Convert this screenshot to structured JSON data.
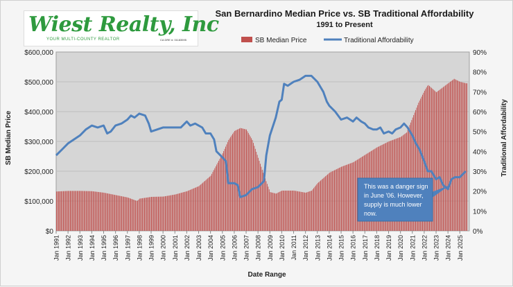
{
  "logo": {
    "name": "Wiest Realty, Inc",
    "tagline": "YOUR MULTI-COUNTY REALTOR",
    "license": "CA DRE #: 01183595"
  },
  "chart_data": {
    "type": "bar+line",
    "title": "San Bernardino Median Price vs. SB Traditional Affordability",
    "subtitle": "1991 to Present",
    "xlabel": "Date Range",
    "ylabel": "SB Median Price",
    "y2label": "Traditional Affordability",
    "legend_position": "top",
    "grid": true,
    "ylim": [
      0,
      600000
    ],
    "y2lim": [
      0,
      90
    ],
    "y_ticks": [
      "$0",
      "$100,000",
      "$200,000",
      "$300,000",
      "$400,000",
      "$500,000",
      "$600,000"
    ],
    "y2_ticks": [
      "0%",
      "10%",
      "20%",
      "30%",
      "40%",
      "50%",
      "60%",
      "70%",
      "80%",
      "90%"
    ],
    "x_ticks": [
      "Jan 1991",
      "Jan 1992",
      "Jan 1993",
      "Jan 1994",
      "Jan 1995",
      "Jan 1996",
      "Jan 1997",
      "Jan 1998",
      "Jan 1999",
      "Jan 2000",
      "Jan 2001",
      "Jan 2002",
      "Jan 2003",
      "Jan 2004",
      "Jan 2005",
      "Jan 2006",
      "Jan 2007",
      "Jan 2008",
      "Jan 2009",
      "Jan 2010",
      "Jan 2011",
      "Jan 2012",
      "Jan 2013",
      "Jan 2014",
      "Jan 2015",
      "Jan 2016",
      "Jan 2017",
      "Jan 2018",
      "Jan 2019",
      "Jan 2020",
      "Jan 2021",
      "Jan 2022",
      "Jan 2023",
      "Jan 2024",
      "Jan 2025"
    ],
    "series": [
      {
        "name": "SB Median Price",
        "type": "bar",
        "axis": "left",
        "color": "#c0504d",
        "points": [
          [
            1991.0,
            132000
          ],
          [
            1992.0,
            134000
          ],
          [
            1993.0,
            134000
          ],
          [
            1994.0,
            133000
          ],
          [
            1995.0,
            128000
          ],
          [
            1996.0,
            120000
          ],
          [
            1997.0,
            112000
          ],
          [
            1997.8,
            100000
          ],
          [
            1998.0,
            108000
          ],
          [
            1999.0,
            114000
          ],
          [
            2000.0,
            115000
          ],
          [
            2001.0,
            122000
          ],
          [
            2002.0,
            133000
          ],
          [
            2003.0,
            150000
          ],
          [
            2004.0,
            185000
          ],
          [
            2005.0,
            260000
          ],
          [
            2005.5,
            305000
          ],
          [
            2006.0,
            335000
          ],
          [
            2006.5,
            345000
          ],
          [
            2007.0,
            340000
          ],
          [
            2007.5,
            305000
          ],
          [
            2008.0,
            245000
          ],
          [
            2008.5,
            185000
          ],
          [
            2009.0,
            130000
          ],
          [
            2009.5,
            125000
          ],
          [
            2010.0,
            135000
          ],
          [
            2011.0,
            135000
          ],
          [
            2012.0,
            128000
          ],
          [
            2012.5,
            135000
          ],
          [
            2013.0,
            160000
          ],
          [
            2014.0,
            195000
          ],
          [
            2015.0,
            215000
          ],
          [
            2016.0,
            230000
          ],
          [
            2017.0,
            255000
          ],
          [
            2018.0,
            280000
          ],
          [
            2019.0,
            300000
          ],
          [
            2020.0,
            315000
          ],
          [
            2020.5,
            330000
          ],
          [
            2021.0,
            380000
          ],
          [
            2021.5,
            430000
          ],
          [
            2022.0,
            470000
          ],
          [
            2022.3,
            490000
          ],
          [
            2023.0,
            465000
          ],
          [
            2023.5,
            480000
          ],
          [
            2024.0,
            495000
          ],
          [
            2024.5,
            510000
          ],
          [
            2025.0,
            500000
          ],
          [
            2025.5,
            495000
          ]
        ]
      },
      {
        "name": "Traditional Affordability",
        "type": "line",
        "axis": "right",
        "color": "#4f81bd",
        "points": [
          [
            1991.0,
            38
          ],
          [
            1991.5,
            41
          ],
          [
            1992.0,
            44
          ],
          [
            1992.5,
            46
          ],
          [
            1993.0,
            48
          ],
          [
            1993.5,
            51
          ],
          [
            1994.0,
            53
          ],
          [
            1994.5,
            52
          ],
          [
            1995.0,
            53
          ],
          [
            1995.3,
            49
          ],
          [
            1995.6,
            50
          ],
          [
            1996.0,
            53
          ],
          [
            1996.5,
            54
          ],
          [
            1997.0,
            56
          ],
          [
            1997.3,
            58
          ],
          [
            1997.6,
            57
          ],
          [
            1998.0,
            59
          ],
          [
            1998.5,
            58
          ],
          [
            1998.8,
            54
          ],
          [
            1999.0,
            50
          ],
          [
            1999.5,
            51
          ],
          [
            2000.0,
            52
          ],
          [
            2000.5,
            52
          ],
          [
            2001.0,
            52
          ],
          [
            2001.5,
            52
          ],
          [
            2002.0,
            55
          ],
          [
            2002.3,
            53
          ],
          [
            2002.7,
            54
          ],
          [
            2003.0,
            53
          ],
          [
            2003.3,
            52
          ],
          [
            2003.6,
            49
          ],
          [
            2004.0,
            49
          ],
          [
            2004.3,
            46
          ],
          [
            2004.5,
            40
          ],
          [
            2005.0,
            37
          ],
          [
            2005.3,
            35
          ],
          [
            2005.5,
            24
          ],
          [
            2006.0,
            24
          ],
          [
            2006.3,
            23
          ],
          [
            2006.5,
            17
          ],
          [
            2007.0,
            18
          ],
          [
            2007.5,
            21
          ],
          [
            2008.0,
            22
          ],
          [
            2008.5,
            25
          ],
          [
            2008.7,
            38
          ],
          [
            2009.0,
            48
          ],
          [
            2009.5,
            57
          ],
          [
            2009.8,
            65
          ],
          [
            2010.0,
            66
          ],
          [
            2010.2,
            74
          ],
          [
            2010.5,
            73
          ],
          [
            2011.0,
            75
          ],
          [
            2011.5,
            76
          ],
          [
            2012.0,
            78
          ],
          [
            2012.5,
            78
          ],
          [
            2013.0,
            75
          ],
          [
            2013.5,
            70
          ],
          [
            2013.8,
            65
          ],
          [
            2014.0,
            63
          ],
          [
            2014.5,
            60
          ],
          [
            2015.0,
            56
          ],
          [
            2015.5,
            57
          ],
          [
            2016.0,
            55
          ],
          [
            2016.3,
            57
          ],
          [
            2016.7,
            55
          ],
          [
            2017.0,
            54
          ],
          [
            2017.3,
            52
          ],
          [
            2017.7,
            51
          ],
          [
            2018.0,
            51
          ],
          [
            2018.3,
            52
          ],
          [
            2018.6,
            49
          ],
          [
            2019.0,
            50
          ],
          [
            2019.3,
            49
          ],
          [
            2019.6,
            51
          ],
          [
            2020.0,
            52
          ],
          [
            2020.3,
            54
          ],
          [
            2020.6,
            52
          ],
          [
            2021.0,
            48
          ],
          [
            2021.3,
            44
          ],
          [
            2021.6,
            41
          ],
          [
            2022.0,
            35
          ],
          [
            2022.3,
            30
          ],
          [
            2022.6,
            30
          ],
          [
            2023.0,
            26
          ],
          [
            2023.3,
            27
          ],
          [
            2023.6,
            23
          ],
          [
            2024.0,
            21
          ],
          [
            2024.3,
            26
          ],
          [
            2024.6,
            27
          ],
          [
            2025.0,
            27
          ],
          [
            2025.5,
            30
          ]
        ]
      }
    ],
    "annotations": [
      {
        "lines": [
          "This was a danger sign",
          "in June '06. However,",
          "supply is much lower",
          "now."
        ],
        "fill": "#4f81bd",
        "text_color": "#ffffff"
      }
    ]
  }
}
